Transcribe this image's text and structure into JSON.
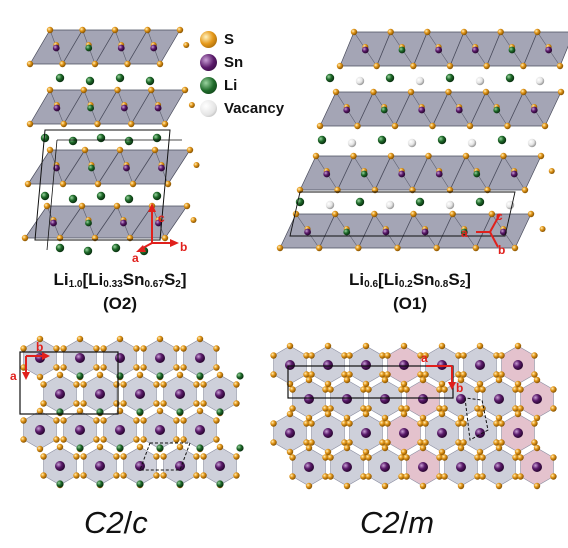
{
  "legend": [
    {
      "label": "S",
      "color": "#e69a1c"
    },
    {
      "label": "Sn",
      "color": "#5a1a6a"
    },
    {
      "label": "Li",
      "color": "#1f6b2a"
    },
    {
      "label": "Vacancy",
      "color": "#d8d8d8"
    }
  ],
  "panels": {
    "left": {
      "formula": {
        "a": "Li",
        "a_sub": "1.0",
        "b": "[Li",
        "b_sub": "0.33",
        "c": "Sn",
        "c_sub": "0.67",
        "d": "S",
        "d_sub": "2",
        "e": "]"
      },
      "stacking": "(O2)",
      "space_group": {
        "pre": "C2",
        "slash": "/",
        "post": "c"
      },
      "axes_top": {
        "a": "a",
        "b": "b",
        "c": "c"
      },
      "axes_bottom": {
        "a": "a",
        "b": "b"
      }
    },
    "right": {
      "formula": {
        "a": "Li",
        "a_sub": "0.6",
        "b": "[Li",
        "b_sub": "0.2",
        "c": "Sn",
        "c_sub": "0.8",
        "d": "S",
        "d_sub": "2",
        "e": "]"
      },
      "stacking": "(O1)",
      "space_group": {
        "pre": "C2",
        "slash": "/",
        "post": "m"
      },
      "axes_top": {
        "a": "a",
        "b": "b",
        "c": "c"
      },
      "axes_bottom": {
        "a": "a",
        "b": "b"
      }
    }
  },
  "colors": {
    "sulfur": "#e69a1c",
    "tin": "#5a1a6a",
    "lithium": "#1f6b2a",
    "vacancy": "#d8d8d8",
    "octahedron": "#8d8fa3",
    "octahedron_pink": "#d9a8b8",
    "axis": "#e0201c"
  }
}
